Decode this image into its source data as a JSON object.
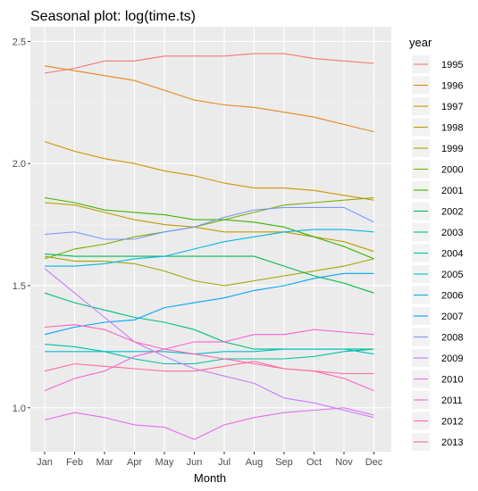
{
  "chart_data": {
    "type": "line",
    "title": "Seasonal plot: log(time.ts)",
    "xlabel": "Month",
    "ylabel": "",
    "legend_title": "year",
    "legend_position": "right",
    "grid": true,
    "ylim": [
      0.82,
      2.56
    ],
    "yticks": [
      1.0,
      1.5,
      2.0,
      2.5
    ],
    "ytick_labels": [
      "1.0",
      "1.5",
      "2.0",
      "2.5"
    ],
    "categories": [
      "Jan",
      "Feb",
      "Mar",
      "Apr",
      "May",
      "Jun",
      "Jul",
      "Aug",
      "Sep",
      "Oct",
      "Nov",
      "Dec"
    ],
    "series": [
      {
        "name": "1995",
        "color": "#F8766D",
        "values": [
          2.37,
          2.39,
          2.42,
          2.42,
          2.44,
          2.44,
          2.44,
          2.45,
          2.45,
          2.43,
          2.42,
          2.41
        ]
      },
      {
        "name": "1996",
        "color": "#E7861B",
        "values": [
          2.4,
          2.38,
          2.36,
          2.34,
          2.3,
          2.26,
          2.24,
          2.23,
          2.21,
          2.19,
          2.16,
          2.13
        ]
      },
      {
        "name": "1997",
        "color": "#D39200",
        "values": [
          2.09,
          2.05,
          2.02,
          2.0,
          1.97,
          1.95,
          1.92,
          1.9,
          1.9,
          1.89,
          1.87,
          1.85
        ]
      },
      {
        "name": "1998",
        "color": "#BB9D00",
        "values": [
          1.84,
          1.83,
          1.8,
          1.77,
          1.75,
          1.74,
          1.72,
          1.72,
          1.72,
          1.7,
          1.68,
          1.64
        ]
      },
      {
        "name": "1999",
        "color": "#A3A500",
        "values": [
          1.62,
          1.6,
          1.6,
          1.59,
          1.56,
          1.52,
          1.5,
          1.52,
          1.54,
          1.56,
          1.58,
          1.61
        ]
      },
      {
        "name": "2000",
        "color": "#7CAE00",
        "values": [
          1.61,
          1.65,
          1.67,
          1.7,
          1.72,
          1.74,
          1.77,
          1.8,
          1.83,
          1.84,
          1.85,
          1.86
        ]
      },
      {
        "name": "2001",
        "color": "#39B600",
        "values": [
          1.86,
          1.84,
          1.81,
          1.8,
          1.79,
          1.77,
          1.77,
          1.76,
          1.74,
          1.7,
          1.66,
          1.61
        ]
      },
      {
        "name": "2002",
        "color": "#00BB4E",
        "values": [
          1.63,
          1.62,
          1.62,
          1.62,
          1.62,
          1.62,
          1.62,
          1.62,
          1.58,
          1.54,
          1.51,
          1.47
        ]
      },
      {
        "name": "2003",
        "color": "#00BF7D",
        "values": [
          1.47,
          1.43,
          1.4,
          1.37,
          1.35,
          1.32,
          1.27,
          1.24,
          1.24,
          1.24,
          1.24,
          1.24
        ]
      },
      {
        "name": "2004",
        "color": "#00C1A3",
        "values": [
          1.26,
          1.25,
          1.23,
          1.2,
          1.18,
          1.18,
          1.2,
          1.2,
          1.2,
          1.21,
          1.23,
          1.24
        ]
      },
      {
        "name": "2005",
        "color": "#00BECD",
        "values": [
          1.23,
          1.23,
          1.23,
          1.23,
          1.23,
          1.22,
          1.23,
          1.23,
          1.24,
          1.24,
          1.24,
          1.22
        ]
      },
      {
        "name": "2006",
        "color": "#00B8E7",
        "values": [
          1.58,
          1.58,
          1.59,
          1.61,
          1.62,
          1.65,
          1.68,
          1.7,
          1.72,
          1.73,
          1.73,
          1.72
        ]
      },
      {
        "name": "2007",
        "color": "#00A5FF",
        "values": [
          1.3,
          1.33,
          1.35,
          1.36,
          1.41,
          1.43,
          1.45,
          1.48,
          1.5,
          1.53,
          1.55,
          1.55
        ]
      },
      {
        "name": "2008",
        "color": "#7997FF",
        "values": [
          1.71,
          1.72,
          1.69,
          1.69,
          1.72,
          1.74,
          1.78,
          1.81,
          1.82,
          1.82,
          1.82,
          1.76
        ]
      },
      {
        "name": "2009",
        "color": "#C77CFF",
        "values": [
          1.57,
          1.47,
          1.37,
          1.27,
          1.21,
          1.16,
          1.13,
          1.1,
          1.04,
          1.02,
          0.99,
          0.96
        ]
      },
      {
        "name": "2010",
        "color": "#E76BF3",
        "values": [
          0.95,
          0.98,
          0.96,
          0.93,
          0.92,
          0.87,
          0.93,
          0.96,
          0.98,
          0.99,
          1.0,
          0.97
        ]
      },
      {
        "name": "2011",
        "color": "#FA62DB",
        "values": [
          1.07,
          1.12,
          1.15,
          1.21,
          1.24,
          1.27,
          1.27,
          1.3,
          1.3,
          1.32,
          1.31,
          1.3
        ]
      },
      {
        "name": "2012",
        "color": "#FF62BC",
        "values": [
          1.33,
          1.34,
          1.32,
          1.27,
          1.24,
          1.22,
          1.2,
          1.18,
          1.16,
          1.15,
          1.12,
          1.07
        ]
      },
      {
        "name": "2013",
        "color": "#FF6C91",
        "values": [
          1.15,
          1.18,
          1.17,
          1.16,
          1.15,
          1.15,
          1.17,
          1.19,
          1.16,
          1.15,
          1.14,
          1.14
        ]
      }
    ]
  }
}
